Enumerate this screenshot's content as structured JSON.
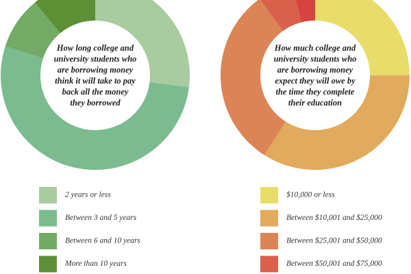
{
  "chart_data": [
    {
      "type": "pie",
      "donut": true,
      "title": [
        "How long college and",
        "university students who",
        "are borrowing money",
        "think it will take to pay",
        "back all the money",
        "they borrowed"
      ],
      "categories": [
        "2 years or less",
        "Between 3 and 5 years",
        "Between 6 and 10 years",
        "More than 10 years"
      ],
      "values": [
        27,
        53,
        9,
        11
      ],
      "colors": [
        "#a8cba0",
        "#7bbb8f",
        "#72aa66",
        "#5d8f35"
      ]
    },
    {
      "type": "pie",
      "donut": true,
      "title": [
        "How much college and",
        "university students who",
        "are borrowing money",
        "expect they will owe by",
        "the time they complete",
        "their education"
      ],
      "categories": [
        "$10,000 or less",
        "Between $10,001 and $25,000",
        "Between $25,001 and $50,000",
        "Between $50,001 and $75,000",
        null
      ],
      "values": [
        25,
        34,
        31,
        6,
        4
      ],
      "colors": [
        "#e8dc6a",
        "#e2aa5c",
        "#db8557",
        "#d9614c",
        "#d8423f"
      ]
    }
  ]
}
